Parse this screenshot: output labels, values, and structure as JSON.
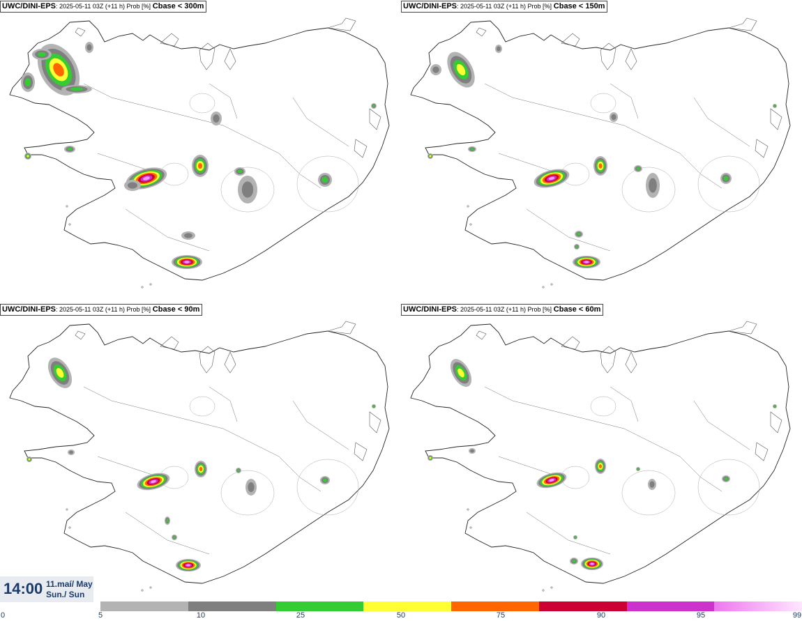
{
  "panels": [
    {
      "model": "UWC/DINI-EPS",
      "meta": ": 2025-05-11 03Z (+11 h) Prob [%]",
      "threshold": "Cbase < 300m"
    },
    {
      "model": "UWC/DINI-EPS",
      "meta": ": 2025-05-11 03Z (+11 h) Prob [%]",
      "threshold": "Cbase < 150m"
    },
    {
      "model": "UWC/DINI-EPS",
      "meta": ": 2025-05-11 03Z (+11 h) Prob [%]",
      "threshold": "Cbase < 90m"
    },
    {
      "model": "UWC/DINI-EPS",
      "meta": ": 2025-05-11 03Z (+11 h) Prob [%]",
      "threshold": "Cbase < 60m"
    }
  ],
  "valid_time": {
    "time": "14:00",
    "date_line1": "11.maí/ May",
    "date_line2": "Sun./ Sun"
  },
  "legend": {
    "ticks": [
      "0",
      "5",
      "10",
      "25",
      "50",
      "75",
      "90",
      "95",
      "99"
    ],
    "colors": [
      "#b3b3b3",
      "#7f7f7f",
      "#33cc33",
      "#ffff33",
      "#ff6600",
      "#cc0033",
      "#cc33cc",
      "#ff99ff"
    ]
  }
}
